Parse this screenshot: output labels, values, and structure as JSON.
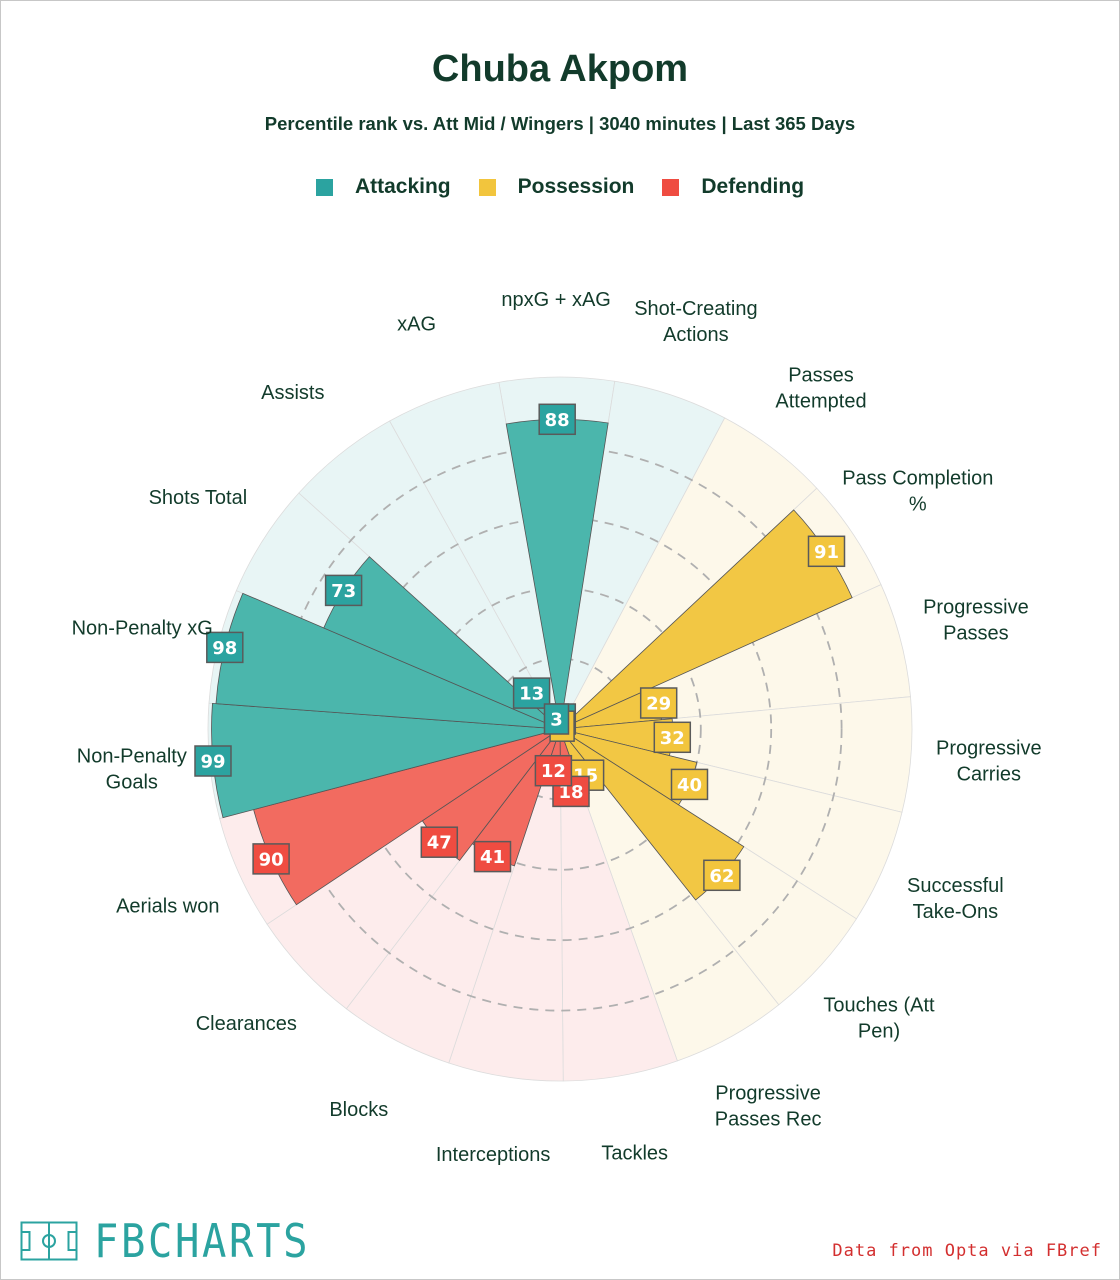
{
  "title": "Chuba Akpom",
  "subtitle": "Percentile rank vs. Att Mid / Wingers | 3040 minutes | Last 365 Days",
  "legend": [
    {
      "label": "Attacking",
      "color": "#2ba3a0"
    },
    {
      "label": "Possession",
      "color": "#f2c53d"
    },
    {
      "label": "Defending",
      "color": "#ef4c41"
    }
  ],
  "groups": {
    "Attacking": {
      "fill": "#4bb6ac",
      "bg": "#e8f5f5",
      "box": "#2ba3a0"
    },
    "Possession": {
      "fill": "#f2c744",
      "bg": "#fdf8ea",
      "box": "#f2c53d"
    },
    "Defending": {
      "fill": "#f26b60",
      "bg": "#fdecec",
      "box": "#ef4c41"
    }
  },
  "chart_data": {
    "type": "polar-bar",
    "title": "Chuba Akpom",
    "rlim": [
      0,
      100
    ],
    "gridlines": [
      20,
      40,
      60,
      80
    ],
    "metrics": [
      {
        "label": "npxG + xAG",
        "value": 88,
        "group": "Attacking"
      },
      {
        "label": "Shot-Creating Actions",
        "value": 3,
        "group": "Attacking"
      },
      {
        "label": "Passes Attempted",
        "value": 1,
        "group": "Possession"
      },
      {
        "label": "Pass Completion %",
        "value": 91,
        "group": "Possession"
      },
      {
        "label": "Progressive Passes",
        "value": 29,
        "group": "Possession"
      },
      {
        "label": "Progressive Carries",
        "value": 32,
        "group": "Possession"
      },
      {
        "label": "Successful Take-Ons",
        "value": 40,
        "group": "Possession"
      },
      {
        "label": "Touches (Att Pen)",
        "value": 62,
        "group": "Possession"
      },
      {
        "label": "Progressive Passes Rec",
        "value": 15,
        "group": "Possession"
      },
      {
        "label": "Tackles",
        "value": 18,
        "group": "Defending"
      },
      {
        "label": "Interceptions",
        "value": 12,
        "group": "Defending"
      },
      {
        "label": "Blocks",
        "value": 41,
        "group": "Defending"
      },
      {
        "label": "Clearances",
        "value": 47,
        "group": "Defending"
      },
      {
        "label": "Aerials won",
        "value": 90,
        "group": "Defending"
      },
      {
        "label": "Non-Penalty Goals",
        "value": 99,
        "group": "Attacking"
      },
      {
        "label": "Non-Penalty xG",
        "value": 98,
        "group": "Attacking"
      },
      {
        "label": "Shots Total",
        "value": 73,
        "group": "Attacking"
      },
      {
        "label": "Assists",
        "value": 13,
        "group": "Attacking"
      },
      {
        "label": "xAG",
        "value": 3,
        "group": "Attacking"
      }
    ]
  },
  "brand": "FBCHARTS",
  "source": "Data from Opta via FBref"
}
